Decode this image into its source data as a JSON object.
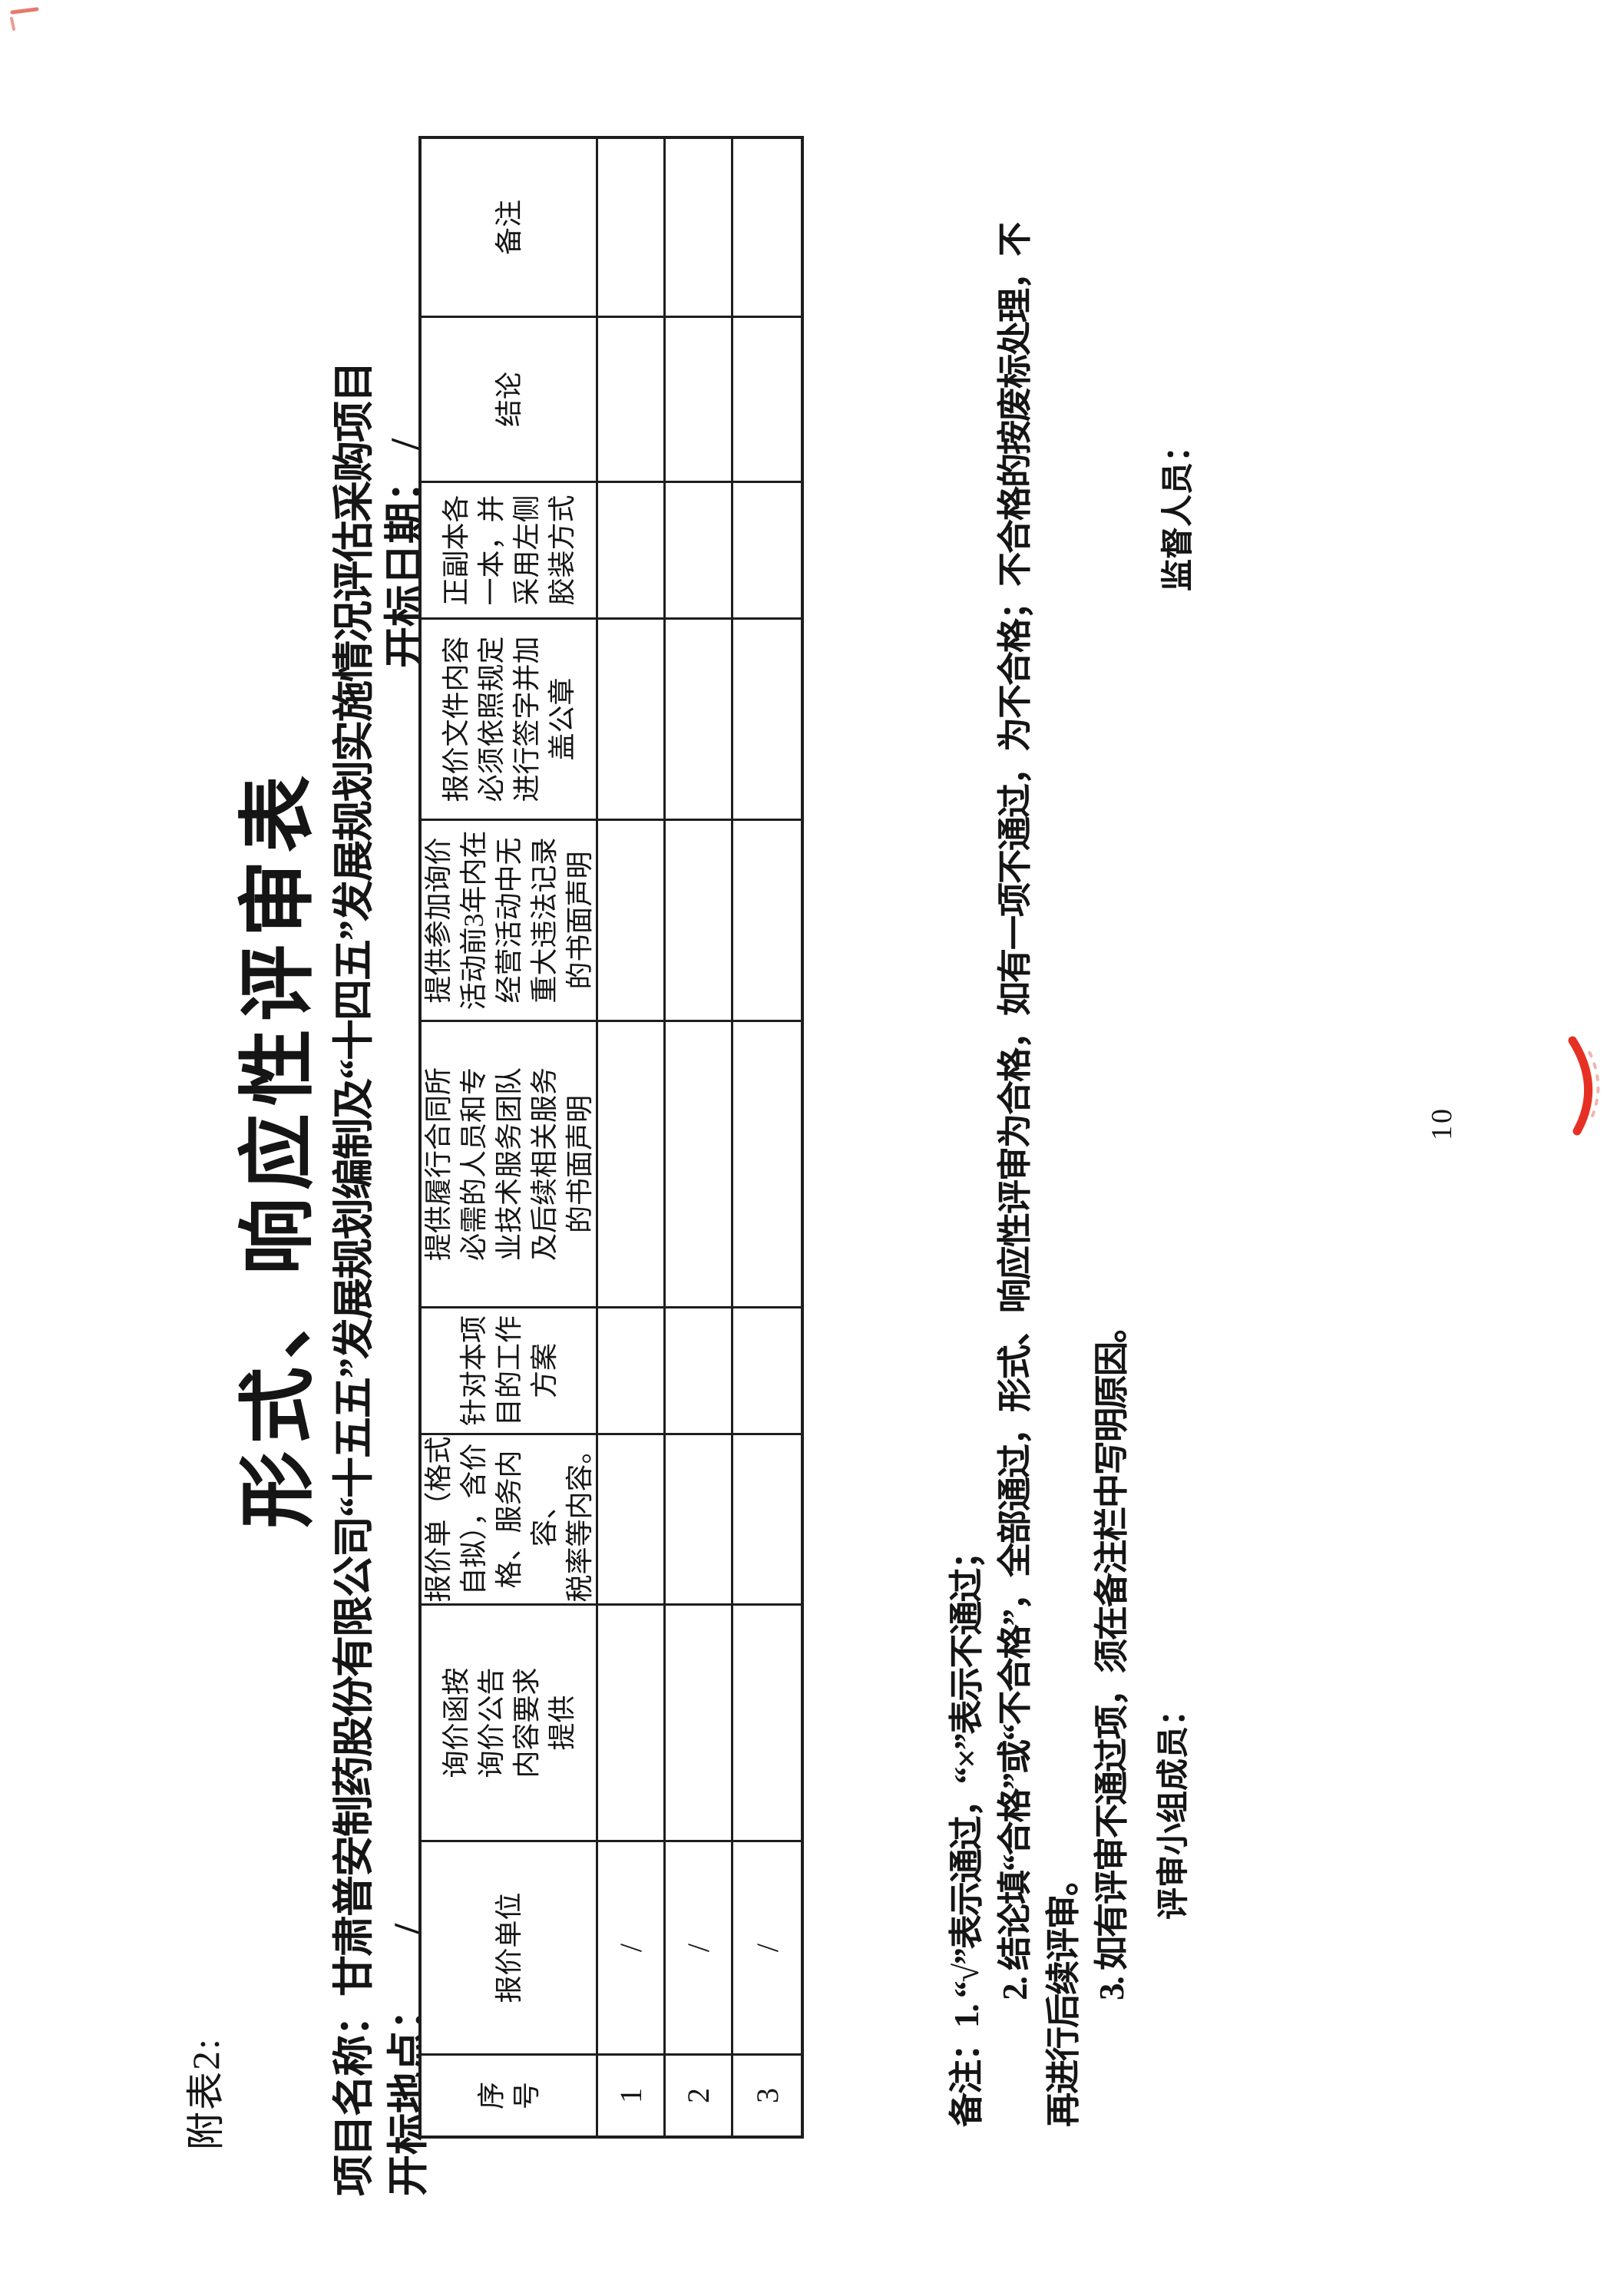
{
  "page": {
    "annex_label": "附表2:",
    "title": "形式、响应性评审表",
    "project": {
      "label": "项目名称：",
      "value": "甘肃普安制药股份有限公司“十五五”发展规划编制及“十四五”发展规划实施情况评估采购项目"
    },
    "bid_location": {
      "label": "开标地点：",
      "value": "/"
    },
    "bid_date": {
      "label": "开标日期：",
      "value": "/"
    },
    "page_number": "10"
  },
  "table": {
    "headers": [
      "序\n号",
      "报价单位",
      "询价函按\n询价公告\n内容要求\n提供",
      "报价单（格式\n自拟），含价\n格、服务内容、\n税率等内容。",
      "针对本项\n目的工作\n方案",
      "提供履行合同所\n必需的人员和专\n业技术服务团队\n及后续相关服务\n的书面声明",
      "提供参加询价\n活动前3年内在\n经营活动中无\n重大违法记录\n的书面声明",
      "报价文件内容\n必须依照规定\n进行签字并加\n盖公章",
      "正副本各\n一本，并\n采用左侧\n胶装方式",
      "结论",
      "备注"
    ],
    "rows": [
      [
        "1",
        "/",
        "",
        "",
        "",
        "",
        "",
        "",
        "",
        "",
        ""
      ],
      [
        "2",
        "/",
        "",
        "",
        "",
        "",
        "",
        "",
        "",
        "",
        ""
      ],
      [
        "3",
        "/",
        "",
        "",
        "",
        "",
        "",
        "",
        "",
        "",
        ""
      ]
    ]
  },
  "notes": {
    "lines": [
      "备注：1. “√”表示通过，“×”表示不通过；",
      "2. 结论填“合格”或“不合格”，全部通过，形式、响应性评审为合格，如有一项不通过，为不合格；不合格的按废标处理，不",
      "再进行后续评审。",
      "3. 如有评审不通过项，须在备注栏中写明原因。"
    ]
  },
  "signatures": {
    "team": "评审小组成员：",
    "supervisor": "监督人员："
  },
  "marks": {
    "pen_mark_color": "#e63024"
  }
}
